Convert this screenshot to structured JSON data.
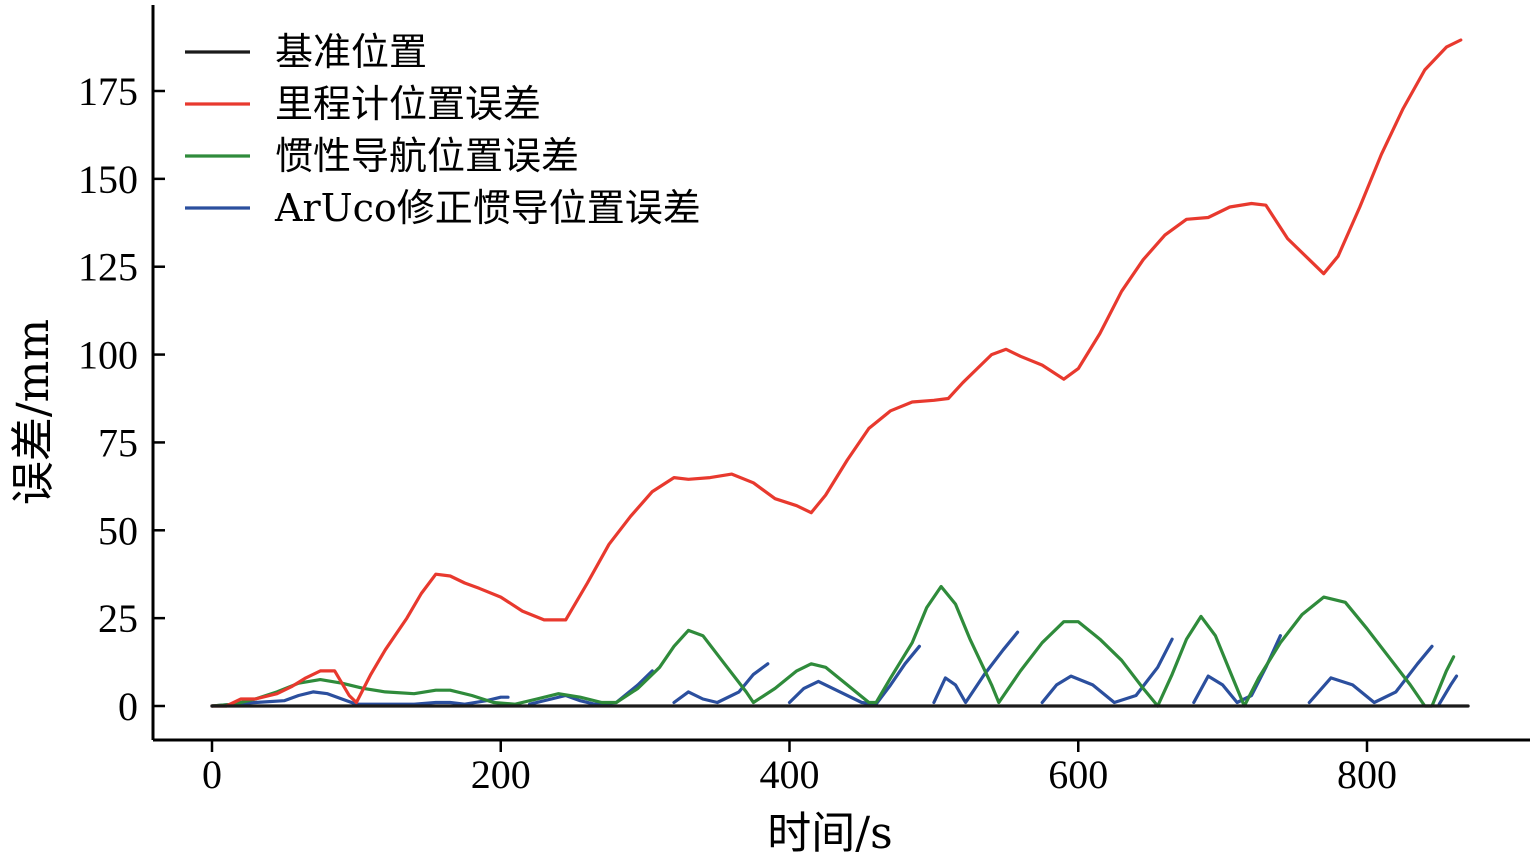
{
  "chart_data": {
    "type": "line",
    "title": "",
    "xlabel": "时间/s",
    "ylabel": "误差/mm",
    "xlim": [
      -50,
      1140
    ],
    "ylim": [
      -10,
      200
    ],
    "xticks": [
      0,
      200,
      400,
      600,
      800
    ],
    "yticks": [
      0,
      25,
      50,
      75,
      100,
      125,
      150,
      175
    ],
    "xtick_labels": [
      "0",
      "200",
      "400",
      "600",
      "800"
    ],
    "ytick_labels": [
      "0",
      "25",
      "50",
      "75",
      "100",
      "125",
      "150",
      "175"
    ],
    "grid": false,
    "legend_position": "top-left",
    "series": [
      {
        "name": "基准位置",
        "color": "#1a1a1a",
        "segments": [
          [
            [
              0,
              0
            ],
            [
              870,
              0
            ]
          ]
        ]
      },
      {
        "name": "里程计位置误差",
        "color": "#e8392e",
        "segments": [
          [
            [
              0,
              0
            ],
            [
              10,
              0
            ],
            [
              20,
              2
            ],
            [
              30,
              2
            ],
            [
              45,
              3.5
            ],
            [
              55,
              5.5
            ],
            [
              65,
              8
            ],
            [
              75,
              10
            ],
            [
              85,
              10
            ],
            [
              95,
              3
            ],
            [
              100,
              1
            ],
            [
              110,
              9
            ],
            [
              120,
              16
            ],
            [
              135,
              25
            ],
            [
              145,
              32
            ],
            [
              155,
              37.5
            ],
            [
              165,
              37
            ],
            [
              175,
              35
            ],
            [
              185,
              33.5
            ],
            [
              200,
              31
            ],
            [
              215,
              27
            ],
            [
              230,
              24.5
            ],
            [
              245,
              24.5
            ],
            [
              260,
              35
            ],
            [
              275,
              46
            ],
            [
              290,
              54
            ],
            [
              305,
              61
            ],
            [
              320,
              65
            ],
            [
              330,
              64.5
            ],
            [
              345,
              65
            ],
            [
              360,
              66
            ],
            [
              375,
              63.5
            ],
            [
              390,
              59
            ],
            [
              405,
              57
            ],
            [
              415,
              55
            ],
            [
              425,
              60
            ],
            [
              440,
              70
            ],
            [
              455,
              79
            ],
            [
              470,
              84
            ],
            [
              485,
              86.5
            ],
            [
              500,
              87
            ],
            [
              510,
              87.5
            ],
            [
              520,
              92
            ],
            [
              530,
              96
            ],
            [
              540,
              100
            ],
            [
              550,
              101.5
            ],
            [
              560,
              99.5
            ],
            [
              575,
              97
            ],
            [
              590,
              93
            ],
            [
              600,
              96
            ],
            [
              615,
              106
            ],
            [
              630,
              118
            ],
            [
              645,
              127
            ],
            [
              660,
              134
            ],
            [
              675,
              138.5
            ],
            [
              690,
              139
            ],
            [
              705,
              142
            ],
            [
              720,
              143
            ],
            [
              730,
              142.5
            ],
            [
              745,
              133
            ],
            [
              760,
              127
            ],
            [
              770,
              123
            ],
            [
              780,
              128
            ],
            [
              795,
              142
            ],
            [
              810,
              157
            ],
            [
              825,
              170
            ],
            [
              840,
              181
            ],
            [
              855,
              187.5
            ],
            [
              865,
              189.5
            ]
          ]
        ]
      },
      {
        "name": "惯性导航位置误差",
        "color": "#2f8b3b",
        "segments": [
          [
            [
              0,
              0
            ],
            [
              15,
              0.5
            ],
            [
              30,
              2
            ],
            [
              45,
              4
            ],
            [
              60,
              6.5
            ],
            [
              75,
              7.5
            ],
            [
              90,
              6.5
            ],
            [
              105,
              5
            ],
            [
              120,
              4
            ],
            [
              140,
              3.5
            ],
            [
              155,
              4.5
            ],
            [
              165,
              4.5
            ],
            [
              180,
              3
            ],
            [
              195,
              1
            ],
            [
              210,
              0.5
            ],
            [
              225,
              2
            ],
            [
              240,
              3.5
            ],
            [
              255,
              2.5
            ],
            [
              270,
              1
            ],
            [
              280,
              1
            ],
            [
              295,
              5
            ],
            [
              310,
              11
            ],
            [
              320,
              17
            ],
            [
              330,
              21.5
            ],
            [
              340,
              20
            ],
            [
              355,
              12
            ],
            [
              370,
              4
            ],
            [
              375,
              1
            ],
            [
              390,
              5
            ],
            [
              405,
              10
            ],
            [
              415,
              12
            ],
            [
              425,
              11
            ],
            [
              440,
              6
            ],
            [
              455,
              1
            ],
            [
              460,
              1
            ],
            [
              470,
              8
            ],
            [
              485,
              18
            ],
            [
              495,
              28
            ],
            [
              505,
              34
            ],
            [
              515,
              29
            ],
            [
              525,
              19
            ],
            [
              540,
              6
            ],
            [
              545,
              1
            ],
            [
              560,
              10
            ],
            [
              575,
              18
            ],
            [
              590,
              24
            ],
            [
              600,
              24
            ],
            [
              615,
              19
            ],
            [
              630,
              13
            ],
            [
              645,
              5
            ],
            [
              655,
              0
            ],
            [
              665,
              9
            ],
            [
              675,
              19
            ],
            [
              685,
              25.5
            ],
            [
              695,
              20
            ],
            [
              705,
              10
            ],
            [
              715,
              0
            ],
            [
              725,
              8
            ],
            [
              740,
              18
            ],
            [
              755,
              26
            ],
            [
              770,
              31
            ],
            [
              785,
              29.5
            ],
            [
              800,
              22
            ],
            [
              815,
              14
            ],
            [
              830,
              6
            ],
            [
              840,
              0
            ],
            [
              845,
              0
            ],
            [
              855,
              10
            ],
            [
              860,
              14
            ]
          ]
        ]
      },
      {
        "name": "ArUco修正惯导位置误差",
        "color": "#2b4f9e",
        "segments": [
          [
            [
              0,
              0
            ],
            [
              15,
              0.5
            ],
            [
              30,
              1
            ],
            [
              50,
              1.5
            ],
            [
              60,
              3
            ],
            [
              70,
              4
            ],
            [
              80,
              3.5
            ],
            [
              90,
              2
            ],
            [
              100,
              0.5
            ],
            [
              120,
              0.5
            ],
            [
              140,
              0.5
            ],
            [
              155,
              1
            ],
            [
              165,
              1
            ],
            [
              175,
              0.5
            ],
            [
              190,
              1.5
            ],
            [
              200,
              2.5
            ],
            [
              205,
              2.5
            ]
          ],
          [
            [
              220,
              0.5
            ],
            [
              235,
              2
            ],
            [
              245,
              3
            ],
            [
              255,
              1.5
            ],
            [
              265,
              0.5
            ],
            [
              280,
              1
            ],
            [
              295,
              6
            ],
            [
              305,
              10
            ]
          ],
          [
            [
              320,
              1
            ],
            [
              330,
              4
            ],
            [
              340,
              2
            ],
            [
              350,
              1
            ],
            [
              365,
              4
            ],
            [
              375,
              9
            ],
            [
              385,
              12
            ]
          ],
          [
            [
              400,
              1
            ],
            [
              410,
              5
            ],
            [
              420,
              7
            ],
            [
              435,
              4
            ],
            [
              450,
              1
            ],
            [
              460,
              0.5
            ],
            [
              470,
              6
            ],
            [
              480,
              12
            ],
            [
              490,
              17
            ]
          ],
          [
            [
              500,
              1
            ],
            [
              508,
              8
            ],
            [
              515,
              6
            ],
            [
              522,
              1
            ],
            [
              535,
              9
            ],
            [
              548,
              16
            ],
            [
              558,
              21
            ]
          ],
          [
            [
              575,
              1
            ],
            [
              585,
              6
            ],
            [
              595,
              8.5
            ],
            [
              610,
              6
            ],
            [
              625,
              1
            ],
            [
              640,
              3
            ],
            [
              655,
              11
            ],
            [
              665,
              19
            ]
          ],
          [
            [
              680,
              1
            ],
            [
              690,
              8.5
            ],
            [
              700,
              6
            ],
            [
              710,
              1
            ],
            [
              720,
              3
            ],
            [
              730,
              11
            ],
            [
              740,
              20
            ]
          ],
          [
            [
              760,
              1
            ],
            [
              775,
              8
            ],
            [
              790,
              6
            ],
            [
              805,
              1
            ],
            [
              820,
              4
            ],
            [
              835,
              12
            ],
            [
              845,
              17
            ]
          ],
          [
            [
              850,
              0.5
            ],
            [
              858,
              6
            ],
            [
              862,
              8.5
            ]
          ]
        ]
      }
    ]
  }
}
